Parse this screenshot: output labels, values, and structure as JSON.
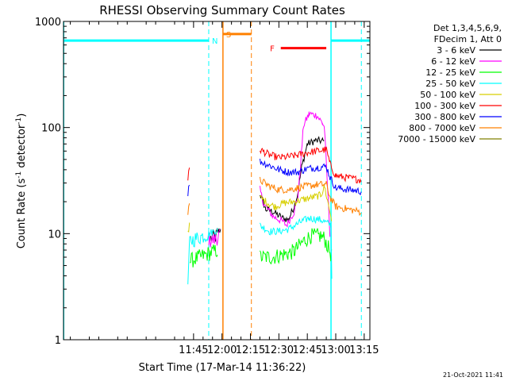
{
  "chart_data": {
    "type": "line",
    "title": "RHESSI Observing Summary Count Rates",
    "xlabel": "Start Time (17-Mar-14 11:36:22)",
    "ylabel": "Count Rate (s⁻¹ detector⁻¹)",
    "ylabel_base": "Count Rate (s",
    "ylabel_sup1": "-1",
    "ylabel_mid": " detector",
    "ylabel_sup2": "-1",
    "ylabel_end": ")",
    "y_scale": "log",
    "ylim": [
      1,
      1000
    ],
    "xlim_minutes": [
      36.4,
      198
    ],
    "x_ticks": [
      {
        "label": "11:45",
        "minutes": 105
      },
      {
        "label": "12:00",
        "minutes": 120
      },
      {
        "label": "12:15",
        "minutes": 135
      },
      {
        "label": "12:30",
        "minutes": 150
      },
      {
        "label": "12:45",
        "minutes": 165
      },
      {
        "label": "13:00",
        "minutes": 180
      },
      {
        "label": "13:15",
        "minutes": 195
      }
    ],
    "y_ticks": [
      {
        "label": "1",
        "value": 1
      },
      {
        "label": "10",
        "value": 10
      },
      {
        "label": "100",
        "value": 100
      },
      {
        "label": "1000",
        "value": 1000
      }
    ],
    "legend_header": [
      "Det 1,3,4,5,6,9,",
      "FDecim 1, Att 0"
    ],
    "legend_placement": "top-right outside",
    "footer_date": "21-Oct-2021 11:41",
    "flag_labels": [
      {
        "label": "N",
        "color": "#00ffff",
        "minutes": 113
      },
      {
        "label": "S",
        "color": "#ff8000",
        "minutes": 120.5
      },
      {
        "label": "F",
        "color": "#ff0000",
        "minutes": 147
      }
    ],
    "flag_bars": [
      {
        "name": "night",
        "color": "#00ffff",
        "y": 660,
        "start": 36.4,
        "end": 113
      },
      {
        "name": "saa",
        "color": "#ff8000",
        "y": 760,
        "start": 120.5,
        "end": 135.5
      },
      {
        "name": "flare",
        "color": "#ff0000",
        "y": 560,
        "start": 151,
        "end": 175
      },
      {
        "name": "night",
        "color": "#00ffff",
        "y": 660,
        "start": 177.5,
        "end": 198
      }
    ],
    "vlines": [
      {
        "minutes": 36.5,
        "color": "#00ffff",
        "style": "solid"
      },
      {
        "minutes": 113,
        "color": "#00ffff",
        "style": "dashed"
      },
      {
        "minutes": 120.5,
        "color": "#ff8000",
        "style": "solid"
      },
      {
        "minutes": 135.5,
        "color": "#ff8000",
        "style": "dashed"
      },
      {
        "minutes": 177.5,
        "color": "#00ffff",
        "style": "solid"
      },
      {
        "minutes": 193.5,
        "color": "#00ffff",
        "style": "dashed"
      }
    ],
    "series": [
      {
        "name": "3 - 6 keV",
        "color": "#000000",
        "points": [
          [
            114,
            9
          ],
          [
            117,
            9.5
          ],
          [
            118,
            10.5
          ],
          [
            119.5,
            11
          ],
          [
            140,
            24
          ],
          [
            143,
            17
          ],
          [
            147,
            16
          ],
          [
            152,
            14
          ],
          [
            155,
            13.5
          ],
          [
            158,
            18
          ],
          [
            160,
            24
          ],
          [
            162,
            42
          ],
          [
            165,
            70
          ],
          [
            169,
            75
          ],
          [
            173,
            75
          ],
          [
            174,
            73
          ]
        ]
      },
      {
        "name": "6 - 12 keV",
        "color": "#ff00ff",
        "points": [
          [
            113,
            9
          ],
          [
            114,
            8.5
          ],
          [
            117,
            9
          ],
          [
            119.5,
            10
          ],
          [
            140,
            26
          ],
          [
            142,
            19
          ],
          [
            147,
            14.5
          ],
          [
            152,
            13
          ],
          [
            154,
            12
          ],
          [
            158,
            16
          ],
          [
            160,
            22
          ],
          [
            161,
            35
          ],
          [
            163,
            105
          ],
          [
            166,
            135
          ],
          [
            170,
            130
          ],
          [
            173,
            110
          ],
          [
            174,
            100
          ],
          [
            177,
            9.5
          ]
        ]
      },
      {
        "name": "12 - 25 keV",
        "color": "#00ff00",
        "points": [
          [
            103,
            5.5
          ],
          [
            113,
            6.5
          ],
          [
            118,
            7
          ],
          [
            140,
            6
          ],
          [
            147,
            6
          ],
          [
            151,
            6.3
          ],
          [
            155,
            6.5
          ],
          [
            158,
            6.8
          ],
          [
            163,
            8.5
          ],
          [
            167,
            9.5
          ],
          [
            172,
            9.5
          ],
          [
            174,
            9
          ],
          [
            178,
            6
          ]
        ]
      },
      {
        "name": "25 - 50 keV",
        "color": "#00ffff",
        "points": [
          [
            80,
            3.4
          ],
          [
            102,
            3.4
          ],
          [
            103,
            8.5
          ],
          [
            113,
            10
          ],
          [
            118,
            11
          ],
          [
            140,
            12
          ],
          [
            145,
            10.5
          ],
          [
            150,
            10.5
          ],
          [
            155,
            11
          ],
          [
            162,
            13
          ],
          [
            166,
            14
          ],
          [
            172,
            13.5
          ],
          [
            177.5,
            12
          ],
          [
            178,
            3.3
          ],
          [
            193.5,
            3.5
          ]
        ]
      },
      {
        "name": "50 - 100 keV",
        "color": "#d7cf00",
        "points": [
          [
            80,
            10.5
          ],
          [
            102,
            10.7
          ],
          [
            103,
            12
          ],
          [
            119.5,
            13
          ],
          [
            140,
            22
          ],
          [
            145,
            19
          ],
          [
            148,
            18
          ],
          [
            153,
            19.5
          ],
          [
            158,
            20
          ],
          [
            163,
            21
          ],
          [
            168,
            22
          ],
          [
            172,
            23
          ],
          [
            173,
            25
          ],
          [
            174,
            28
          ],
          [
            178,
            13
          ],
          [
            193.5,
            11
          ]
        ]
      },
      {
        "name": "100 - 300 keV",
        "color": "#ff0000",
        "points": [
          [
            80,
            33
          ],
          [
            102,
            33
          ],
          [
            103,
            42
          ],
          [
            119.5,
            46
          ],
          [
            140,
            62
          ],
          [
            145,
            55
          ],
          [
            150,
            52
          ],
          [
            155,
            53
          ],
          [
            160,
            55
          ],
          [
            165,
            58
          ],
          [
            170,
            60
          ],
          [
            175,
            62
          ],
          [
            177,
            45
          ],
          [
            180,
            35
          ],
          [
            193.5,
            32
          ]
        ]
      },
      {
        "name": "300 - 800 keV",
        "color": "#0000ff",
        "points": [
          [
            80,
            24
          ],
          [
            102,
            24
          ],
          [
            103,
            31
          ],
          [
            119.5,
            34
          ],
          [
            140,
            48
          ],
          [
            145,
            44
          ],
          [
            150,
            40
          ],
          [
            155,
            38
          ],
          [
            160,
            38
          ],
          [
            165,
            41
          ],
          [
            170,
            42
          ],
          [
            175,
            43
          ],
          [
            177,
            34
          ],
          [
            180,
            27
          ],
          [
            193.5,
            25
          ]
        ]
      },
      {
        "name": "800 - 7000 keV",
        "color": "#ff8000",
        "points": [
          [
            80,
            15.5
          ],
          [
            102,
            15.5
          ],
          [
            103,
            19
          ],
          [
            119.5,
            21
          ],
          [
            140,
            32
          ],
          [
            145,
            28
          ],
          [
            150,
            26
          ],
          [
            155,
            26
          ],
          [
            160,
            27
          ],
          [
            165,
            28
          ],
          [
            170,
            29
          ],
          [
            175,
            29
          ],
          [
            177,
            22
          ],
          [
            180,
            18
          ],
          [
            193.5,
            16
          ]
        ]
      },
      {
        "name": "7000 - 15000 keV",
        "color": "#808000",
        "points": []
      }
    ]
  }
}
